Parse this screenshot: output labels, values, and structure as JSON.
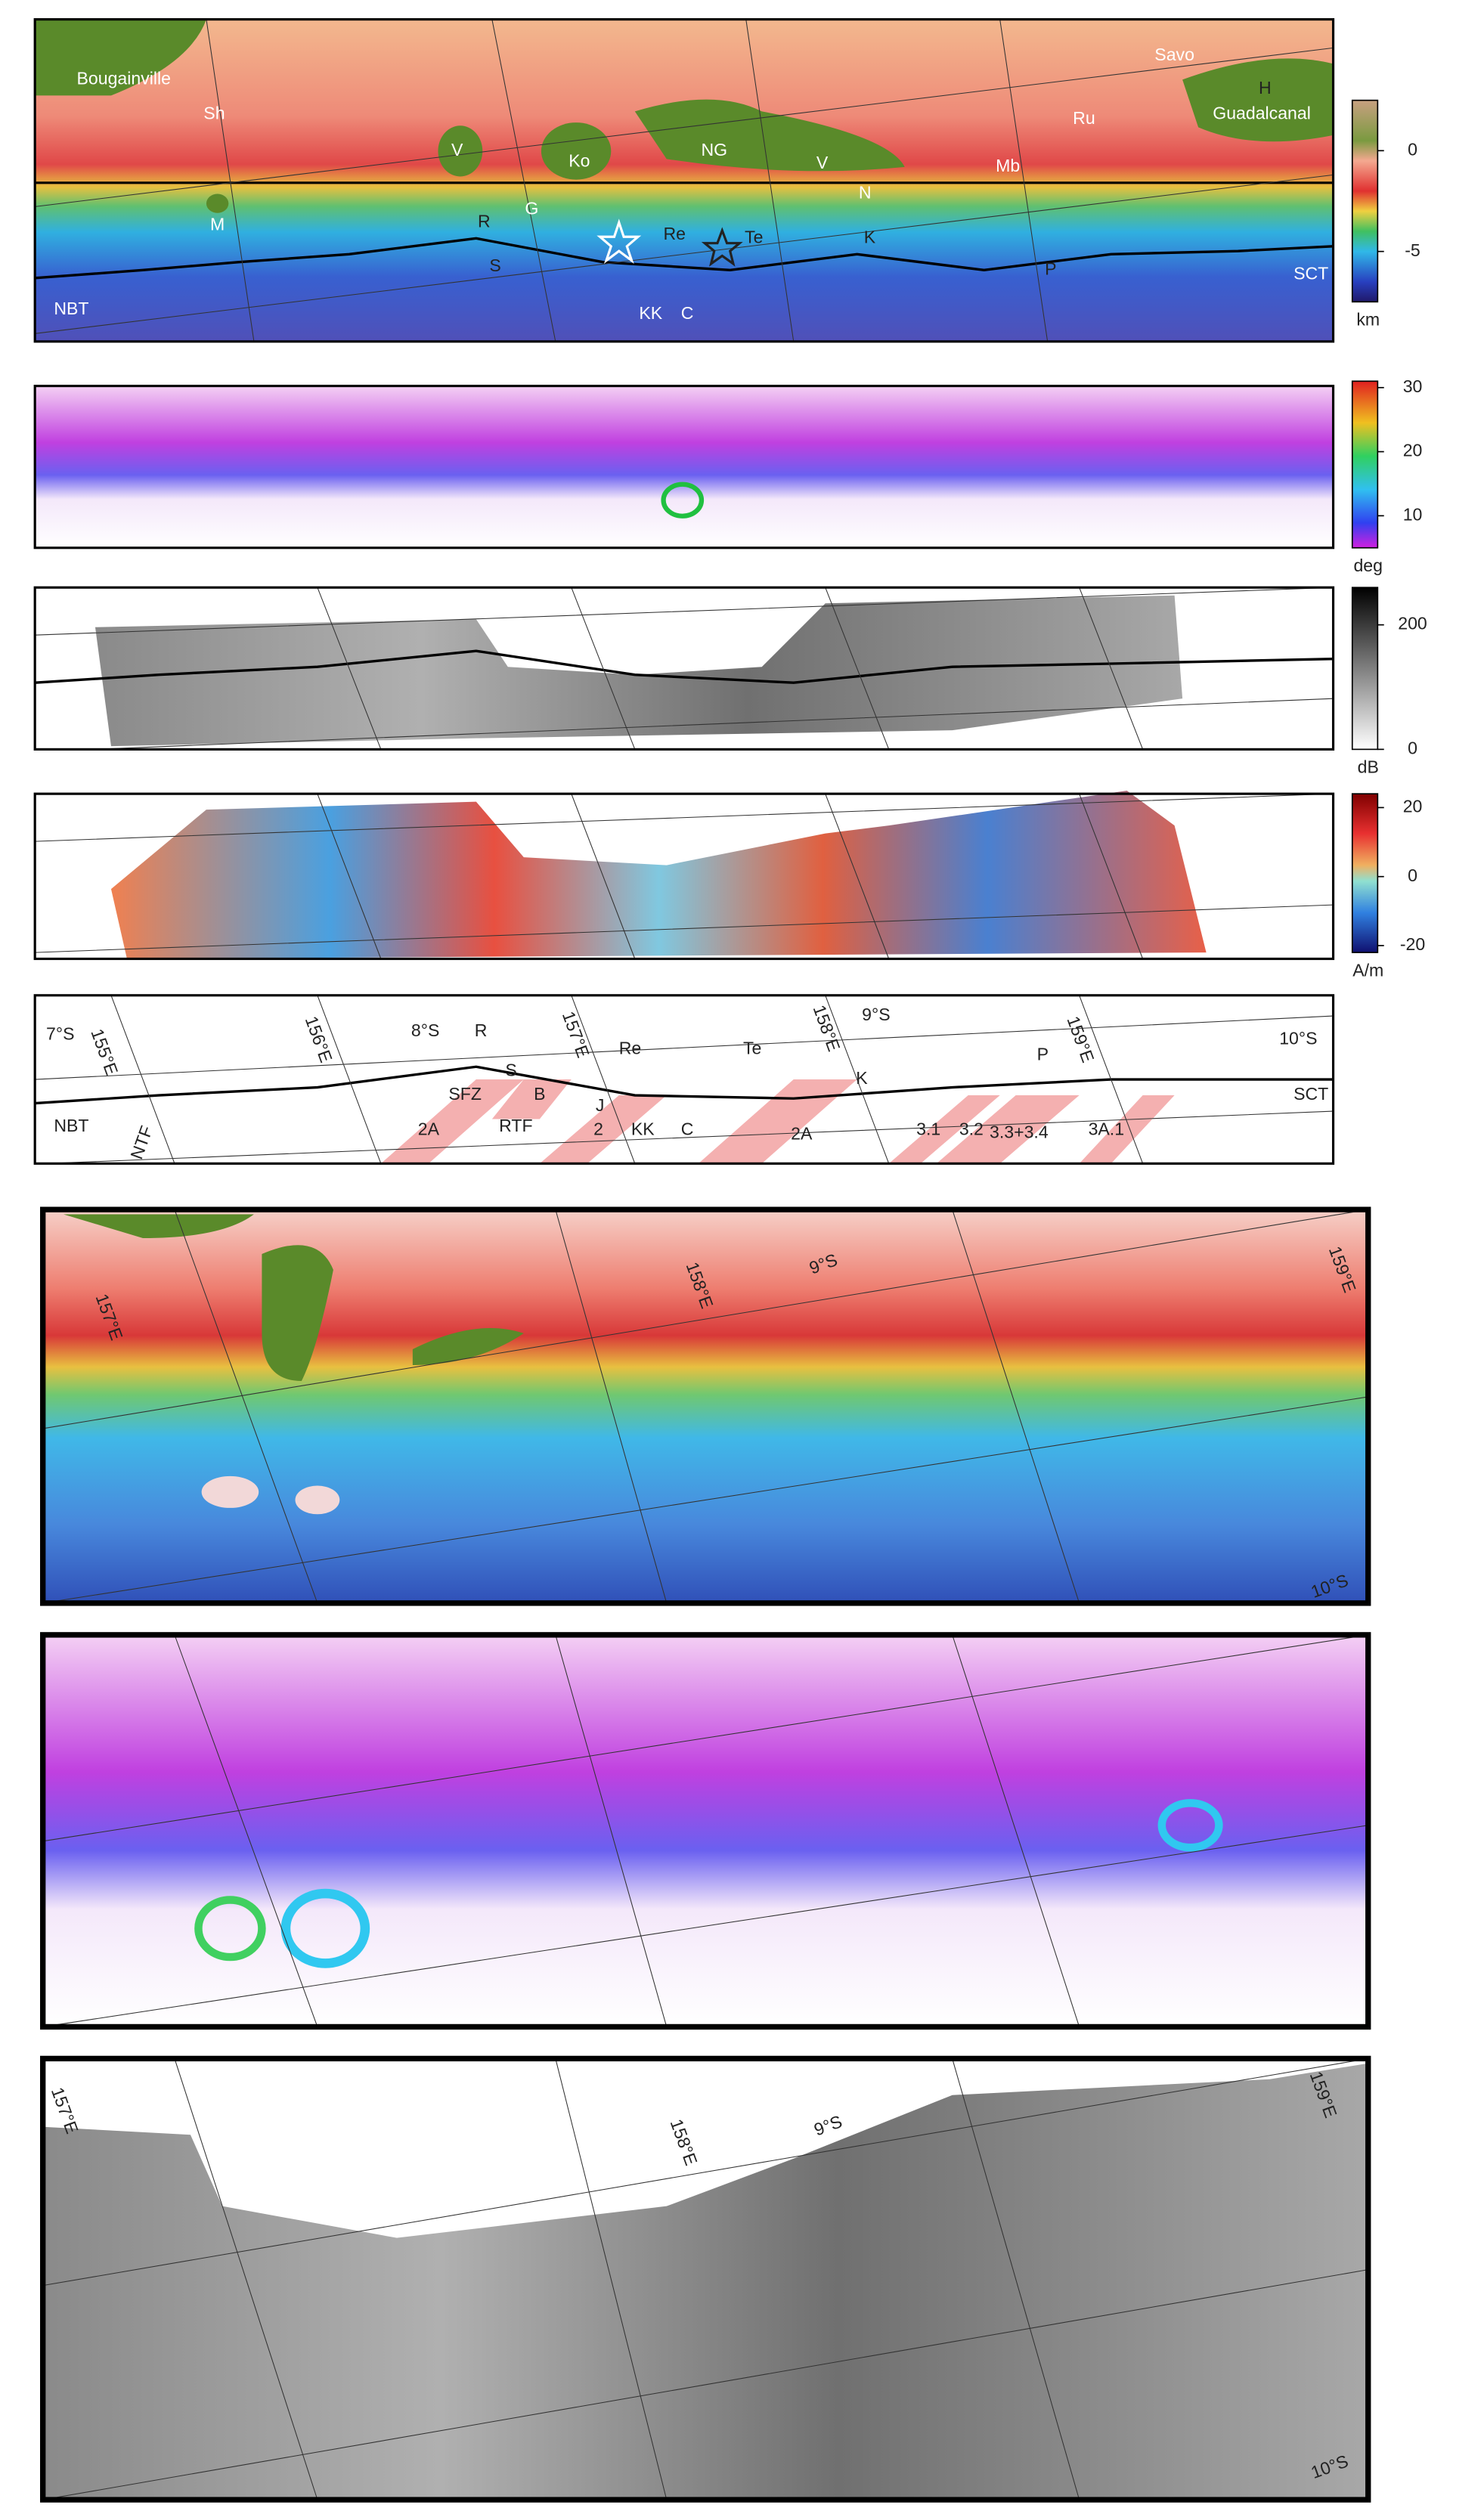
{
  "panels": [
    {
      "labels": [
        "Bougainville",
        "Sh",
        "M",
        "V",
        "Ko",
        "NG",
        "V",
        "N",
        "Mb",
        "Ru",
        "Savo",
        "H",
        "Guadalcanal",
        "R",
        "G",
        "S",
        "Re",
        "Te",
        "K",
        "KK",
        "C",
        "P",
        "NBT",
        "SCT"
      ]
    },
    {
      "labels": []
    },
    {
      "labels": []
    },
    {
      "labels": []
    },
    {
      "labels": [
        "7°S",
        "155°E",
        "156°E",
        "8°S",
        "157°E",
        "158°E",
        "9°S",
        "159°E",
        "10°S",
        "R",
        "Re",
        "Te",
        "K",
        "P",
        "S",
        "SFZ",
        "B",
        "RTF",
        "J",
        "2A",
        "2",
        "KK",
        "C",
        "2A",
        "3.1",
        "3.2",
        "3.3+3.4",
        "3A.1",
        "NBT",
        "NTF",
        "SCT"
      ]
    },
    {
      "labels": [
        "157°E",
        "158°E",
        "9°S",
        "159°E",
        "10°S"
      ]
    },
    {
      "labels": []
    },
    {
      "labels": [
        "157°E",
        "158°E",
        "9°S",
        "159°E",
        "10°S"
      ]
    }
  ],
  "colorbars": [
    {
      "unit": "km",
      "lim": [
        -7.5,
        2.5
      ],
      "ticks": [
        0,
        -5
      ]
    },
    {
      "unit": "deg",
      "lim": [
        5,
        31
      ],
      "ticks": [
        30,
        20,
        10
      ]
    },
    {
      "unit": "dB",
      "lim": [
        0,
        260
      ],
      "ticks": [
        200,
        0
      ]
    },
    {
      "unit": "A/m",
      "lim": [
        -22,
        24
      ],
      "ticks": [
        20,
        0,
        -20
      ]
    }
  ]
}
